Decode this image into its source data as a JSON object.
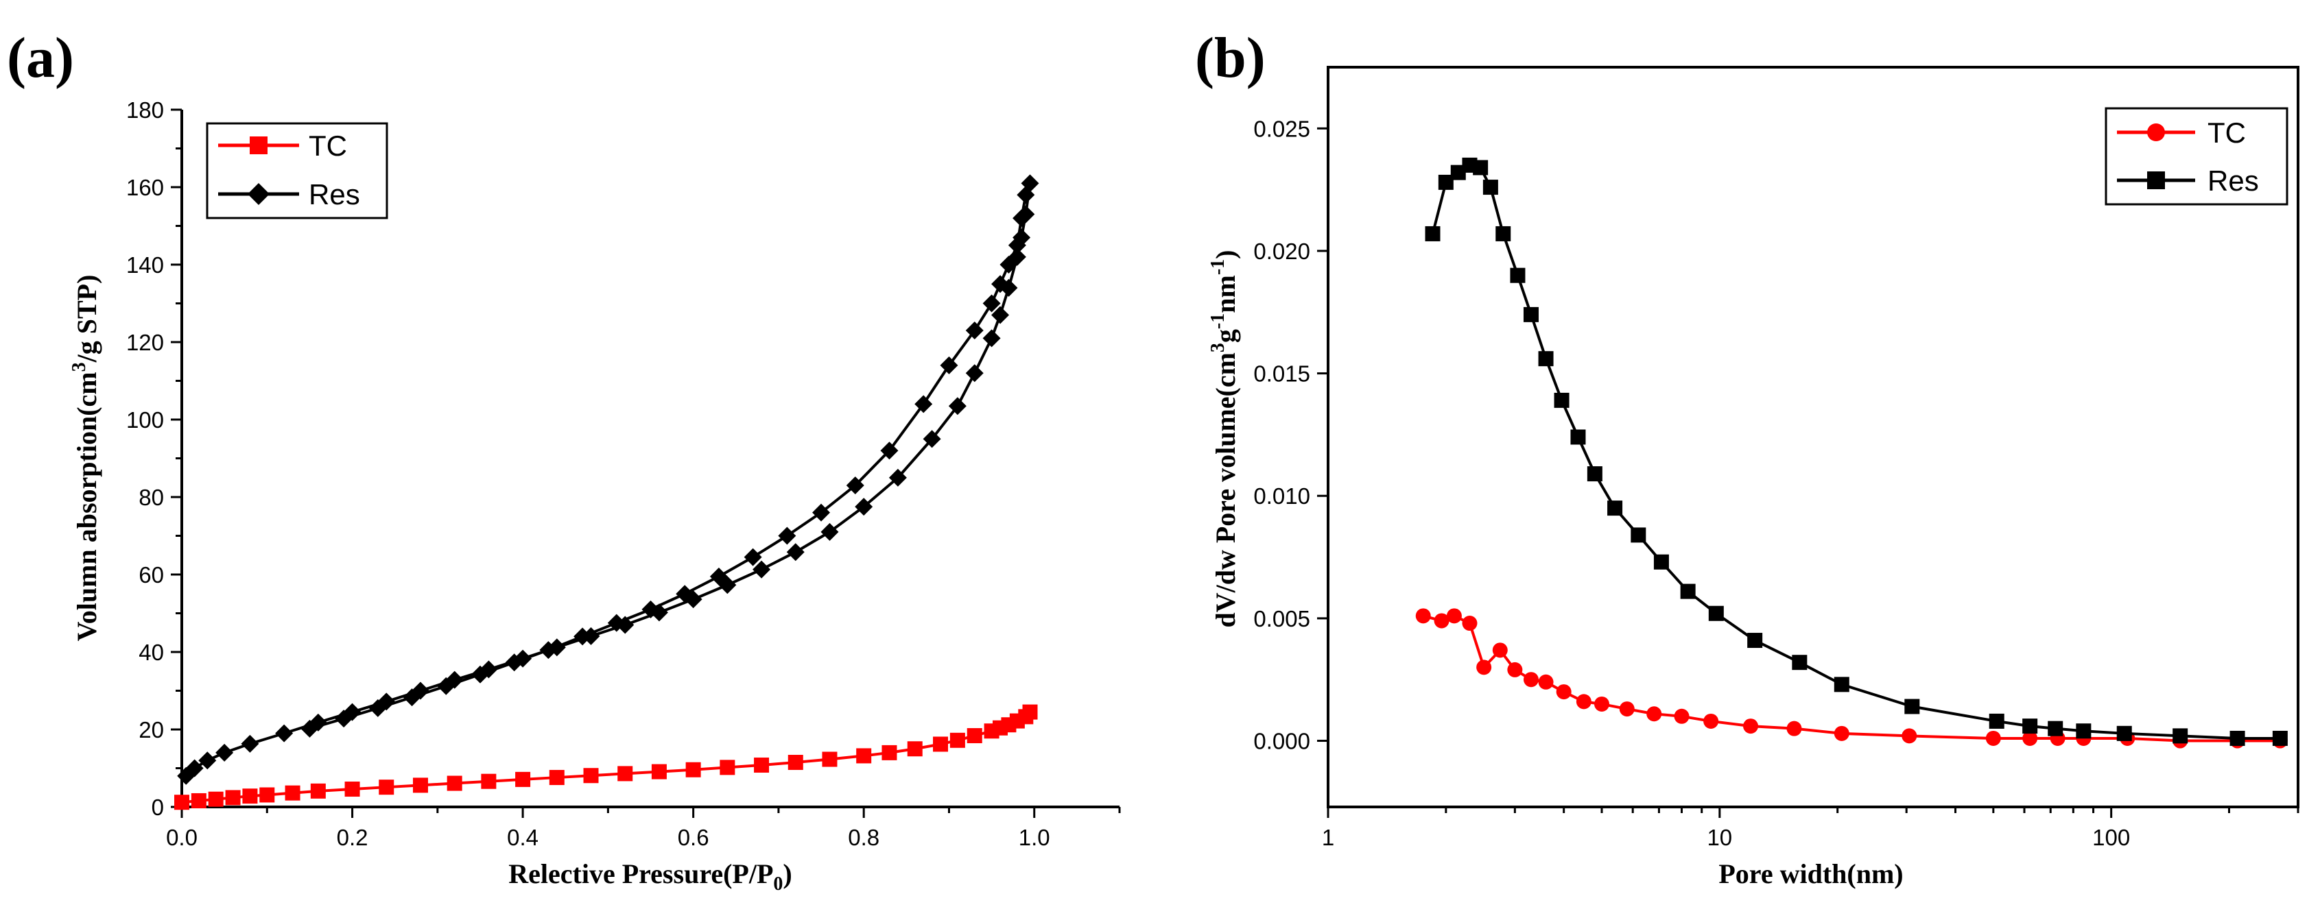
{
  "colors": {
    "tc": "#ff0000",
    "res": "#000000",
    "axis": "#000000"
  },
  "chart_data": [
    {
      "panel": "(a)",
      "type": "line",
      "title": "",
      "xlabel": "Relective Pressure(P/P",
      "xlabel_sub": "0",
      "xlabel_end": ")",
      "ylabel_pre": "Volumn absorption(cm",
      "ylabel_sup": "3",
      "ylabel_post": "/g STP)",
      "xlim": [
        0.0,
        1.1
      ],
      "ylim": [
        0,
        180
      ],
      "xticks": [
        0.0,
        0.2,
        0.4,
        0.6,
        0.8,
        1.0
      ],
      "xtick_labels": [
        "0.0",
        "0.2",
        "0.4",
        "0.6",
        "0.8",
        "1.0"
      ],
      "yticks": [
        0,
        20,
        40,
        60,
        80,
        100,
        120,
        140,
        160,
        180
      ],
      "ytick_labels": [
        "0",
        "20",
        "40",
        "60",
        "80",
        "100",
        "120",
        "140",
        "160",
        "180"
      ],
      "legend_position": "top-left",
      "series": [
        {
          "name": "TC",
          "color": "#ff0000",
          "marker": "square",
          "x": [
            0.0,
            0.02,
            0.04,
            0.06,
            0.08,
            0.1,
            0.13,
            0.16,
            0.2,
            0.24,
            0.28,
            0.32,
            0.36,
            0.4,
            0.44,
            0.48,
            0.52,
            0.56,
            0.6,
            0.64,
            0.68,
            0.72,
            0.76,
            0.8,
            0.83,
            0.86,
            0.89,
            0.91,
            0.93,
            0.95,
            0.96,
            0.97,
            0.98,
            0.99,
            0.995
          ],
          "y": [
            1.2,
            1.6,
            2.0,
            2.4,
            2.8,
            3.1,
            3.6,
            4.1,
            4.6,
            5.1,
            5.6,
            6.1,
            6.6,
            7.1,
            7.6,
            8.1,
            8.6,
            9.1,
            9.6,
            10.2,
            10.8,
            11.5,
            12.3,
            13.2,
            14.0,
            15.0,
            16.2,
            17.2,
            18.4,
            19.6,
            20.4,
            21.2,
            22.2,
            23.3,
            24.5
          ]
        },
        {
          "name": "Res",
          "color": "#000000",
          "marker": "diamond",
          "x": [
            0.005,
            0.015,
            0.03,
            0.05,
            0.08,
            0.12,
            0.16,
            0.2,
            0.24,
            0.28,
            0.32,
            0.36,
            0.4,
            0.44,
            0.48,
            0.52,
            0.56,
            0.6,
            0.64,
            0.68,
            0.72,
            0.76,
            0.8,
            0.84,
            0.88,
            0.91,
            0.93,
            0.95,
            0.96,
            0.97,
            0.98,
            0.985,
            0.99,
            0.995,
            0.99,
            0.985,
            0.98,
            0.97,
            0.96,
            0.95,
            0.93,
            0.9,
            0.87,
            0.83,
            0.79,
            0.75,
            0.71,
            0.67,
            0.63,
            0.59,
            0.55,
            0.51,
            0.47,
            0.43,
            0.39,
            0.35,
            0.31,
            0.27,
            0.23,
            0.19,
            0.15
          ],
          "y": [
            8.0,
            10.0,
            12.0,
            14.0,
            16.3,
            19.0,
            21.8,
            24.5,
            27.2,
            30.0,
            32.8,
            35.5,
            38.3,
            41.2,
            44.1,
            47.0,
            50.2,
            53.6,
            57.3,
            61.3,
            65.8,
            71.0,
            77.5,
            85.0,
            95.0,
            103.5,
            112.0,
            121.0,
            127.0,
            134.0,
            142.0,
            147.0,
            153.0,
            161.0,
            158.0,
            152.0,
            145.0,
            140.0,
            135.0,
            130.0,
            123.0,
            114.0,
            104.0,
            92.0,
            83.0,
            76.0,
            70.0,
            64.5,
            59.5,
            55.0,
            51.0,
            47.5,
            44.0,
            40.5,
            37.3,
            34.2,
            31.2,
            28.3,
            25.5,
            22.8,
            20.2
          ]
        }
      ]
    },
    {
      "panel": "(b)",
      "type": "line",
      "title": "",
      "xlabel": "Pore width(nm)",
      "ylabel_pre": "dV/dw Pore volume(cm",
      "ylabel_sup": "3",
      "ylabel_mid": "g",
      "ylabel_sup2": "-1",
      "ylabel_mid2": "nm",
      "ylabel_sup3": "-1",
      "ylabel_post": ")",
      "xscale": "log",
      "xlim": [
        1,
        300
      ],
      "ylim": [
        -0.0027,
        0.0275
      ],
      "xticks": [
        1,
        10,
        100
      ],
      "xtick_labels": [
        "1",
        "10",
        "100"
      ],
      "yticks": [
        0.0,
        0.005,
        0.01,
        0.015,
        0.02,
        0.025
      ],
      "ytick_labels": [
        "0.000",
        "0.005",
        "0.010",
        "0.015",
        "0.020",
        "0.025"
      ],
      "legend_position": "top-right",
      "series": [
        {
          "name": "TC",
          "color": "#ff0000",
          "marker": "circle",
          "x": [
            1.75,
            1.95,
            2.1,
            2.3,
            2.5,
            2.75,
            3.0,
            3.3,
            3.6,
            4.0,
            4.5,
            5.0,
            5.8,
            6.8,
            8.0,
            9.5,
            12.0,
            15.5,
            20.5,
            30.5,
            50.0,
            62.0,
            73.0,
            85.0,
            110.0,
            150.0,
            210.0,
            270.0
          ],
          "y": [
            0.0051,
            0.0049,
            0.0051,
            0.0048,
            0.003,
            0.0037,
            0.0029,
            0.0025,
            0.0024,
            0.002,
            0.0016,
            0.0015,
            0.0013,
            0.0011,
            0.001,
            0.0008,
            0.0006,
            0.0005,
            0.0003,
            0.0002,
            0.0001,
            0.0001,
            0.0001,
            0.0001,
            0.0001,
            0.0,
            0.0,
            0.0
          ]
        },
        {
          "name": "Res",
          "color": "#000000",
          "marker": "square",
          "x": [
            1.85,
            2.0,
            2.15,
            2.3,
            2.45,
            2.6,
            2.8,
            3.05,
            3.3,
            3.6,
            3.95,
            4.35,
            4.8,
            5.4,
            6.2,
            7.1,
            8.3,
            9.8,
            12.3,
            16.0,
            20.5,
            31.0,
            51.0,
            62.0,
            72.0,
            85.0,
            108.0,
            150.0,
            210.0,
            270.0
          ],
          "y": [
            0.0207,
            0.0228,
            0.0232,
            0.0235,
            0.0234,
            0.0226,
            0.0207,
            0.019,
            0.0174,
            0.0156,
            0.0139,
            0.0124,
            0.0109,
            0.0095,
            0.0084,
            0.0073,
            0.0061,
            0.0052,
            0.0041,
            0.0032,
            0.0023,
            0.0014,
            0.0008,
            0.0006,
            0.0005,
            0.0004,
            0.0003,
            0.0002,
            0.0001,
            0.0001
          ]
        }
      ]
    }
  ]
}
